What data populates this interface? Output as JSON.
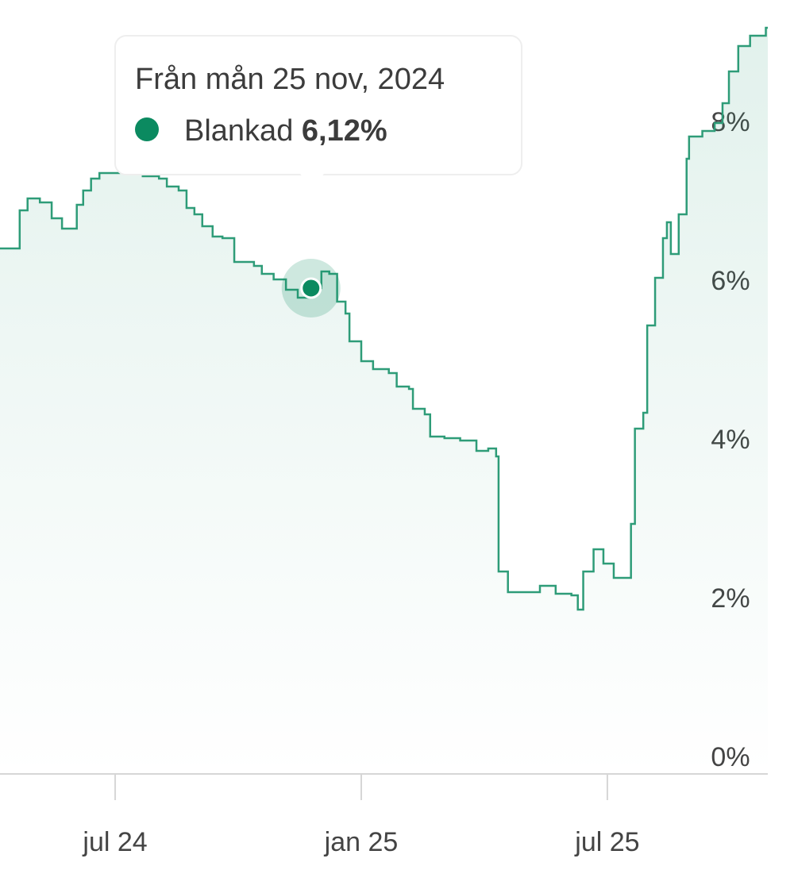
{
  "chart_data": {
    "type": "line",
    "x": [
      2024.266,
      2024.298,
      2024.306,
      2024.322,
      2024.347,
      2024.371,
      2024.392,
      2024.414,
      2024.422,
      2024.435,
      2024.451,
      2024.468,
      2024.492,
      2024.508,
      2024.532,
      2024.556,
      2024.589,
      2024.605,
      2024.629,
      2024.645,
      2024.661,
      2024.677,
      2024.698,
      2024.718,
      2024.737,
      2024.742,
      2024.766,
      2024.782,
      2024.798,
      2024.822,
      2024.847,
      2024.871,
      2024.898,
      2024.919,
      2024.935,
      2024.951,
      2024.968,
      2024.976,
      2025.0,
      2025.024,
      2025.056,
      2025.072,
      2025.097,
      2025.105,
      2025.129,
      2025.14,
      2025.169,
      2025.201,
      2025.234,
      2025.258,
      2025.274,
      2025.279,
      2025.298,
      2025.331,
      2025.363,
      2025.395,
      2025.427,
      2025.44,
      2025.451,
      2025.472,
      2025.492,
      2025.513,
      2025.537,
      2025.548,
      2025.556,
      2025.573,
      2025.581,
      2025.597,
      2025.613,
      2025.621,
      2025.629,
      2025.645,
      2025.661,
      2025.666,
      2025.693,
      2025.718,
      2025.734,
      2025.747,
      2025.766,
      2025.79,
      2025.822
    ],
    "series": [
      {
        "name": "Blankad",
        "color": "#2e9c78",
        "values": [
          6.62,
          6.62,
          7.1,
          7.25,
          7.2,
          7.0,
          6.87,
          6.87,
          7.17,
          7.35,
          7.5,
          7.57,
          7.57,
          7.63,
          7.6,
          7.53,
          7.5,
          7.4,
          7.35,
          7.13,
          7.05,
          6.9,
          6.77,
          6.75,
          6.75,
          6.45,
          6.45,
          6.4,
          6.3,
          6.23,
          6.1,
          6.0,
          6.12,
          6.33,
          6.3,
          5.95,
          5.8,
          5.45,
          5.2,
          5.1,
          5.05,
          4.88,
          4.85,
          4.6,
          4.53,
          4.25,
          4.23,
          4.2,
          4.07,
          4.1,
          4.0,
          2.55,
          2.29,
          2.29,
          2.37,
          2.27,
          2.25,
          2.07,
          2.55,
          2.83,
          2.65,
          2.47,
          2.47,
          3.15,
          4.35,
          4.55,
          5.65,
          6.25,
          6.75,
          6.95,
          6.55,
          7.05,
          7.75,
          8.03,
          8.1,
          8.2,
          8.45,
          8.85,
          9.17,
          9.3,
          9.4
        ]
      }
    ],
    "xlim": [
      2024.266,
      2025.826
    ],
    "xticks": [
      {
        "value": 2024.5,
        "label": "jul 24"
      },
      {
        "value": 2025.0,
        "label": "jan 25"
      },
      {
        "value": 2025.5,
        "label": "jul 25"
      }
    ],
    "ylim": [
      0,
      9.75
    ],
    "yticks": [
      {
        "value": 0,
        "label": "0%"
      },
      {
        "value": 2,
        "label": "2%"
      },
      {
        "value": 4,
        "label": "4%"
      },
      {
        "value": 6,
        "label": "6%"
      },
      {
        "value": 8,
        "label": "8%"
      }
    ],
    "grid": false,
    "tooltip": {
      "title": "Från mån 25 nov, 2024",
      "x": 2024.898,
      "value": 6.12,
      "value_label": "6,12%",
      "color": "#0b8a60"
    }
  }
}
